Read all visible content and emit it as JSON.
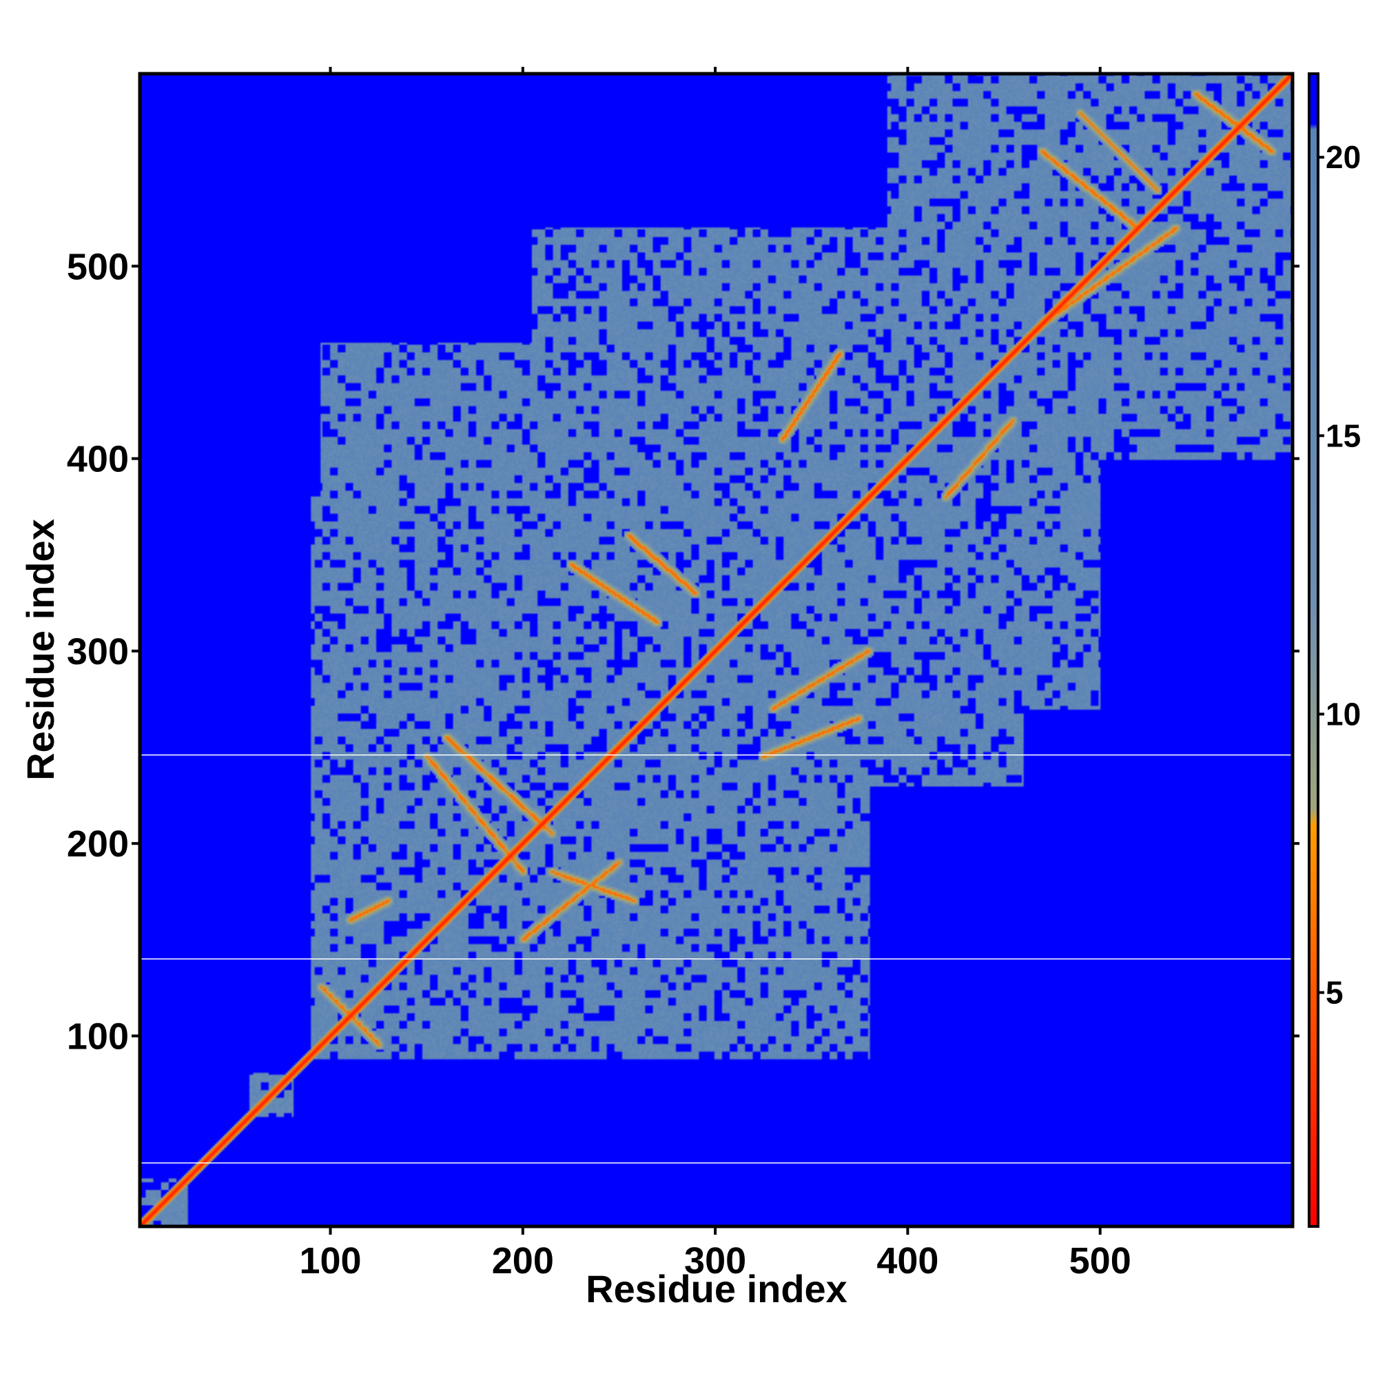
{
  "chart_data": {
    "type": "heatmap",
    "title": "",
    "xlabel": "Residue index",
    "ylabel": "Residue index",
    "xlim": [
      1,
      600
    ],
    "ylim": [
      1,
      600
    ],
    "x_ticks": [
      100,
      200,
      300,
      400,
      500
    ],
    "y_ticks": [
      100,
      200,
      300,
      400,
      500
    ],
    "x_tick_labels": [
      "100",
      "200",
      "300",
      "400",
      "500"
    ],
    "y_tick_labels": [
      "100",
      "200",
      "300",
      "400",
      "500"
    ],
    "colorbar": {
      "range": [
        0.8,
        21.5
      ],
      "ticks": [
        5,
        10,
        15,
        20
      ],
      "tick_labels": [
        "5",
        "10",
        "15",
        "20"
      ],
      "colors": [
        {
          "value": 0.8,
          "color": "#ff0000"
        },
        {
          "value": 5,
          "color": "#ff5500"
        },
        {
          "value": 8,
          "color": "#ff9d00"
        },
        {
          "value": 8.3,
          "color": "#9fa67a"
        },
        {
          "value": 12,
          "color": "#6e8fb3"
        },
        {
          "value": 20.5,
          "color": "#5884b8"
        },
        {
          "value": 20.6,
          "color": "#0000ff"
        },
        {
          "value": 21.5,
          "color": "#0000ff"
        }
      ]
    },
    "background_value": 21.5,
    "diagonal_value": 2,
    "white_reference_lines_y": [
      34,
      140,
      246
    ],
    "contact_regions": [
      {
        "x": [
          1,
          25
        ],
        "y": [
          1,
          25
        ],
        "level": 16
      },
      {
        "x": [
          58,
          80
        ],
        "y": [
          58,
          80
        ],
        "level": 16
      },
      {
        "x": [
          90,
          380
        ],
        "y": [
          88,
          380
        ],
        "level": 17
      },
      {
        "x": [
          95,
          460
        ],
        "y": [
          230,
          460
        ],
        "level": 17
      },
      {
        "x": [
          205,
          500
        ],
        "y": [
          270,
          520
        ],
        "level": 17
      },
      {
        "x": [
          390,
          600
        ],
        "y": [
          400,
          600
        ],
        "level": 17
      },
      {
        "x": [
          460,
          600
        ],
        "y": [
          460,
          600
        ],
        "level": 17
      }
    ],
    "contact_stripes": [
      {
        "from": [
          150,
          245
        ],
        "to": [
          200,
          185
        ],
        "level": 6
      },
      {
        "from": [
          160,
          255
        ],
        "to": [
          215,
          205
        ],
        "level": 6
      },
      {
        "from": [
          200,
          150
        ],
        "to": [
          250,
          190
        ],
        "level": 6
      },
      {
        "from": [
          215,
          185
        ],
        "to": [
          258,
          170
        ],
        "level": 6
      },
      {
        "from": [
          225,
          345
        ],
        "to": [
          270,
          315
        ],
        "level": 6
      },
      {
        "from": [
          255,
          360
        ],
        "to": [
          290,
          330
        ],
        "level": 6
      },
      {
        "from": [
          325,
          245
        ],
        "to": [
          375,
          265
        ],
        "level": 6
      },
      {
        "from": [
          330,
          270
        ],
        "to": [
          380,
          300
        ],
        "level": 6
      },
      {
        "from": [
          335,
          410
        ],
        "to": [
          365,
          455
        ],
        "level": 6
      },
      {
        "from": [
          420,
          380
        ],
        "to": [
          455,
          420
        ],
        "level": 6
      },
      {
        "from": [
          470,
          560
        ],
        "to": [
          520,
          520
        ],
        "level": 6
      },
      {
        "from": [
          470,
          470
        ],
        "to": [
          540,
          520
        ],
        "level": 6
      },
      {
        "from": [
          490,
          580
        ],
        "to": [
          530,
          540
        ],
        "level": 6
      },
      {
        "from": [
          110,
          160
        ],
        "to": [
          130,
          170
        ],
        "level": 6
      },
      {
        "from": [
          95,
          125
        ],
        "to": [
          125,
          95
        ],
        "level": 6
      },
      {
        "from": [
          550,
          590
        ],
        "to": [
          590,
          560
        ],
        "level": 6
      }
    ]
  }
}
